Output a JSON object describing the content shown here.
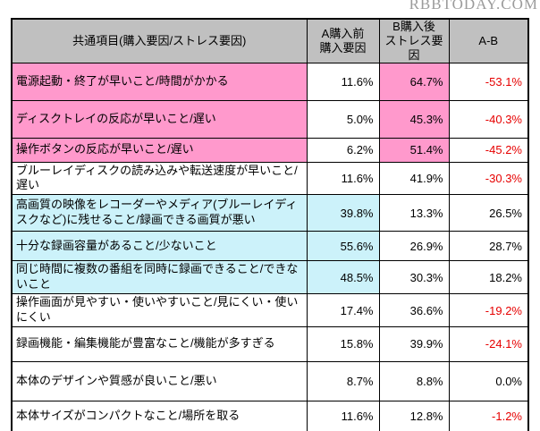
{
  "watermark": "RBBTODAY.COM",
  "colors": {
    "pink": "#ff99cc",
    "cyan": "#ccf2fa",
    "header_gray": "#c0c0c0",
    "negative_red": "#e60000",
    "border": "#000000"
  },
  "table": {
    "header": {
      "item": "共通項目(購入要因/ストレス要因)",
      "col_a": [
        "A購入前",
        "購入要因"
      ],
      "col_b": [
        "B購入後",
        "ストレス要因"
      ],
      "diff": "A-B"
    },
    "rows": [
      {
        "label": "電源起動・終了が早いこと/時間がかかる",
        "a": "11.6%",
        "b": "64.7%",
        "diff": "-53.1%",
        "highlight": "pink"
      },
      {
        "label": "ディスクトレイの反応が早いこと/遅い",
        "a": "5.0%",
        "b": "45.3%",
        "diff": "-40.3%",
        "highlight": "pink"
      },
      {
        "label": "操作ボタンの反応が早いこと/遅い",
        "a": "6.2%",
        "b": "51.4%",
        "diff": "-45.2%",
        "highlight": "pink"
      },
      {
        "label": "ブルーレイディスクの読み込みや転送速度が早いこと/遅い",
        "a": "11.6%",
        "b": "41.9%",
        "diff": "-30.3%",
        "highlight": "none"
      },
      {
        "label": "高画質の映像をレコーダーやメディア(ブルーレイディスクなど)に残せること/録画できる画質が悪い",
        "a": "39.8%",
        "b": "13.3%",
        "diff": "26.5%",
        "highlight": "cyan"
      },
      {
        "label": "十分な録画容量があること/少ないこと",
        "a": "55.6%",
        "b": "26.9%",
        "diff": "28.7%",
        "highlight": "cyan"
      },
      {
        "label": "同じ時間に複数の番組を同時に録画できること/できないこと",
        "a": "48.5%",
        "b": "30.3%",
        "diff": "18.2%",
        "highlight": "cyan"
      },
      {
        "label": "操作画面が見やすい・使いやすいこと/見にくい・使いにくい",
        "a": "17.4%",
        "b": "36.6%",
        "diff": "-19.2%",
        "highlight": "none"
      },
      {
        "label": "録画機能・編集機能が豊富なこと/機能が多すぎる",
        "a": "15.8%",
        "b": "39.9%",
        "diff": "-24.1%",
        "highlight": "none"
      },
      {
        "label": "本体のデザインや質感が良いこと/悪い",
        "a": "8.7%",
        "b": "8.8%",
        "diff": "0.0%",
        "highlight": "none"
      },
      {
        "label": "本体サイズがコンパクトなこと/場所を取る",
        "a": "11.6%",
        "b": "12.8%",
        "diff": "-1.2%",
        "highlight": "none"
      }
    ]
  },
  "chart_data": {
    "type": "table",
    "title": "共通項目(購入要因/ストレス要因)",
    "columns": [
      "共通項目(購入要因/ストレス要因)",
      "A購入前 購入要因",
      "B購入後 ストレス要因",
      "A-B"
    ],
    "rows": [
      [
        "電源起動・終了が早いこと/時間がかかる",
        11.6,
        64.7,
        -53.1
      ],
      [
        "ディスクトレイの反応が早いこと/遅い",
        5.0,
        45.3,
        -40.3
      ],
      [
        "操作ボタンの反応が早いこと/遅い",
        6.2,
        51.4,
        -45.2
      ],
      [
        "ブルーレイディスクの読み込みや転送速度が早いこと/遅い",
        11.6,
        41.9,
        -30.3
      ],
      [
        "高画質の映像をレコーダーやメディア(ブルーレイディスクなど)に残せること/録画できる画質が悪い",
        39.8,
        13.3,
        26.5
      ],
      [
        "十分な録画容量があること/少ないこと",
        55.6,
        26.9,
        28.7
      ],
      [
        "同じ時間に複数の番組を同時に録画できること/できないこと",
        48.5,
        30.3,
        18.2
      ],
      [
        "操作画面が見やすい・使いやすいこと/見にくい・使いにくい",
        17.4,
        36.6,
        -19.2
      ],
      [
        "録画機能・編集機能が豊富なこと/機能が多すぎる",
        15.8,
        39.9,
        -24.1
      ],
      [
        "本体のデザインや質感が良いこと/悪い",
        8.7,
        8.8,
        0.0
      ],
      [
        "本体サイズがコンパクトなこと/場所を取る",
        11.6,
        12.8,
        -1.2
      ]
    ],
    "units": "%",
    "notes": "Negative A-B values rendered in red; rows 1-3 highlighted pink (label + B column), rows 5-7 highlighted cyan (label + A column)"
  }
}
